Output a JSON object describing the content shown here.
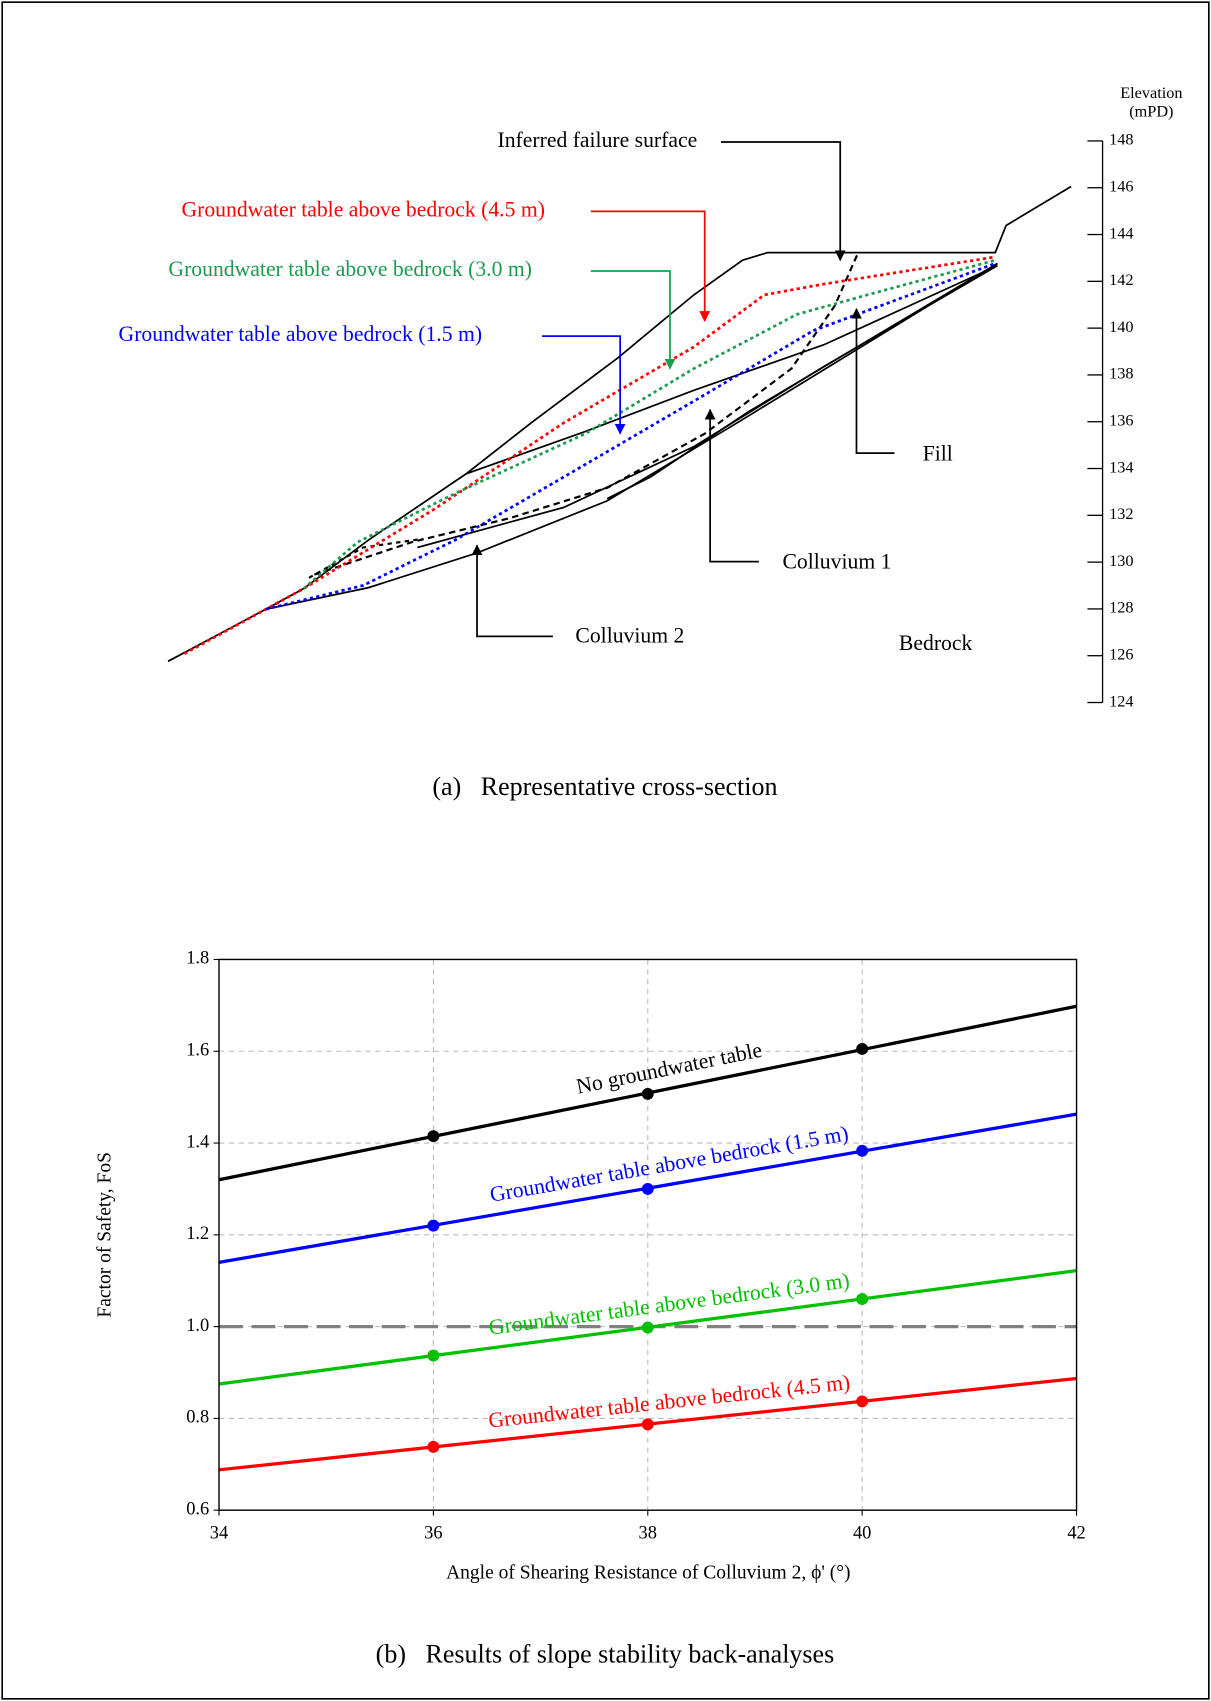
{
  "chart_data": [
    {
      "type": "cross-section",
      "axis_label": [
        "Elevation",
        "(mPD)"
      ],
      "ylim": [
        124,
        148
      ],
      "yticks": [
        124,
        126,
        128,
        130,
        132,
        134,
        136,
        138,
        140,
        142,
        144,
        146,
        148
      ],
      "annotations": [
        "Inferred failure surface",
        "Groundwater table above bedrock (4.5 m)",
        "Groundwater table above bedrock (3.0 m)",
        "Groundwater table above bedrock (1.5 m)",
        "Fill",
        "Colluvium 1",
        "Colluvium 2",
        "Bedrock"
      ],
      "caption": "(a)   Representative cross-section"
    },
    {
      "type": "line",
      "x_label": "Angle of Shearing Resistance of Colluvium 2, ϕ' (°)",
      "y_label": "Factor of Safety, FoS",
      "xlim": [
        34,
        42
      ],
      "xticks": [
        34,
        36,
        38,
        40,
        42
      ],
      "ylim": [
        0.6,
        1.8
      ],
      "yticks": [
        {
          "value": 0.6,
          "label": "0.6"
        },
        {
          "value": 0.8,
          "label": "0.8"
        },
        {
          "value": 1.0,
          "label": "1.0"
        },
        {
          "value": 1.2,
          "label": "1.2"
        },
        {
          "value": 1.4,
          "label": "1.4"
        },
        {
          "value": 1.6,
          "label": "1.6"
        },
        {
          "value": 1.8,
          "label": "1.8"
        }
      ],
      "grid": true,
      "reference_line": 1.0,
      "x": [
        36,
        38,
        40
      ],
      "trend_x": [
        34,
        42
      ],
      "series": [
        {
          "name": "No groundwater table",
          "color": "#000000",
          "values": [
            1.415,
            1.507,
            1.605
          ],
          "trend": [
            1.32,
            1.698
          ]
        },
        {
          "name": "Groundwater table above bedrock (1.5 m)",
          "color": "#0000ff",
          "values": [
            1.22,
            1.3,
            1.383
          ],
          "trend": [
            1.14,
            1.463
          ]
        },
        {
          "name": "Groundwater table above bedrock (3.0 m)",
          "color": "#00c000",
          "values": [
            0.937,
            0.998,
            1.06
          ],
          "trend": [
            0.875,
            1.122
          ]
        },
        {
          "name": "Groundwater table above bedrock (4.5 m)",
          "color": "#ff0000",
          "values": [
            0.738,
            0.787,
            0.837
          ],
          "trend": [
            0.688,
            0.887
          ]
        }
      ],
      "caption": "(b)   Results of slope stability back-analyses"
    }
  ]
}
